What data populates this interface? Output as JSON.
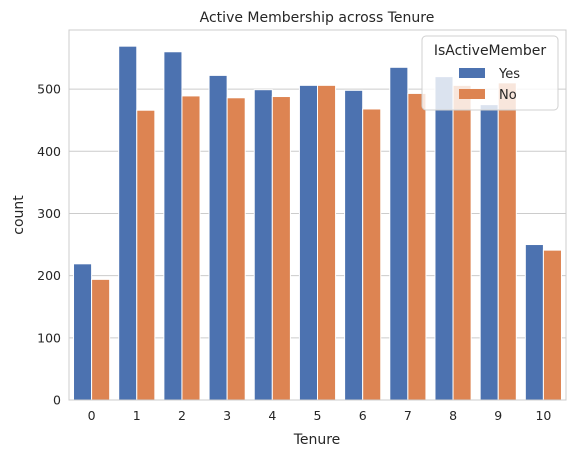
{
  "chart_data": {
    "type": "bar",
    "title": "Active Membership across Tenure",
    "xlabel": "Tenure",
    "ylabel": "count",
    "categories": [
      "0",
      "1",
      "2",
      "3",
      "4",
      "5",
      "6",
      "7",
      "8",
      "9",
      "10"
    ],
    "series": [
      {
        "name": "Yes",
        "color": "#4c72b0",
        "values": [
          219,
          569,
          560,
          522,
          499,
          506,
          498,
          535,
          520,
          475,
          250
        ]
      },
      {
        "name": "No",
        "color": "#dd8452",
        "values": [
          194,
          466,
          489,
          486,
          488,
          506,
          468,
          493,
          506,
          510,
          241
        ]
      }
    ],
    "ylim": [
      0,
      595
    ],
    "yticks": [
      0,
      100,
      200,
      300,
      400,
      500
    ],
    "grid": true,
    "legend": {
      "title": "IsActiveMember",
      "placement": "top-right"
    }
  }
}
